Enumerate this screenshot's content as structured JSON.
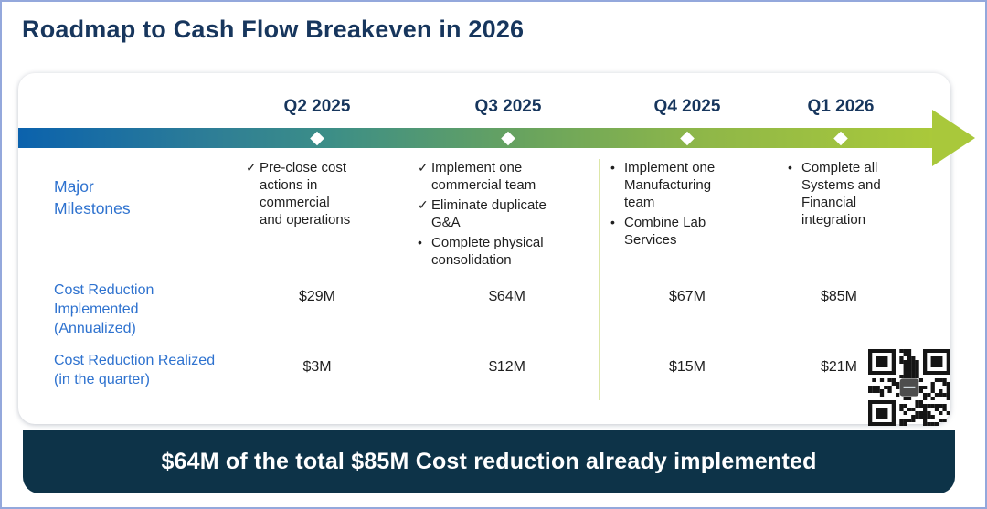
{
  "title": "Roadmap to Cash Flow Breakeven in 2026",
  "table": {
    "row_labels": {
      "milestones": "Major Milestones",
      "implemented": "Cost Reduction Implemented (Annualized)",
      "realized": "Cost Reduction Realized (in the quarter)"
    },
    "columns": [
      {
        "quarter": "Q2 2025",
        "milestones": [
          {
            "marker": "✓",
            "text": "Pre-close cost actions in commercial and operations"
          }
        ],
        "implemented": "$29M",
        "realized": "$3M"
      },
      {
        "quarter": "Q3 2025",
        "milestones": [
          {
            "marker": "✓",
            "text": "Implement one commercial team"
          },
          {
            "marker": "✓",
            "text": "Eliminate duplicate G&A"
          },
          {
            "marker": "•",
            "text": "Complete physical consolidation"
          }
        ],
        "implemented": "$64M",
        "realized": "$12M"
      },
      {
        "quarter": "Q4 2025",
        "milestones": [
          {
            "marker": "•",
            "text": "Implement one Manufacturing team"
          },
          {
            "marker": "•",
            "text": "Combine Lab Services"
          }
        ],
        "implemented": "$67M",
        "realized": "$15M"
      },
      {
        "quarter": "Q1 2026",
        "milestones": [
          {
            "marker": "•",
            "text": "Complete all Systems and Financial integration"
          }
        ],
        "implemented": "$85M",
        "realized": "$21M"
      }
    ]
  },
  "banner": {
    "text": "$64M of the total $85M Cost reduction already implemented"
  },
  "icons": {
    "timeline_arrow": "arrow-right",
    "milestone_done": "checkmark",
    "milestone_planned": "bullet",
    "qr": "qr-code"
  },
  "colors": {
    "title_navy": "#17365d",
    "label_blue": "#2e72cf",
    "banner_bg": "#0d3348",
    "bar_gradient_start": "#0b62ad",
    "bar_gradient_end": "#aac93a",
    "outer_border": "#94a8dc",
    "divider": "#dde7a8"
  }
}
